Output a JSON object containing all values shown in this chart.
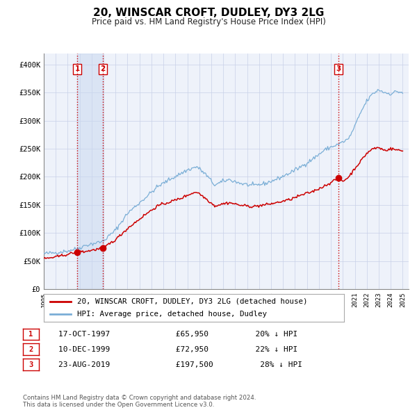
{
  "title": "20, WINSCAR CROFT, DUDLEY, DY3 2LG",
  "subtitle": "Price paid vs. HM Land Registry's House Price Index (HPI)",
  "title_fontsize": 11,
  "subtitle_fontsize": 8.5,
  "ylabel_ticks": [
    "£0",
    "£50K",
    "£100K",
    "£150K",
    "£200K",
    "£250K",
    "£300K",
    "£350K",
    "£400K"
  ],
  "ylabel_values": [
    0,
    50000,
    100000,
    150000,
    200000,
    250000,
    300000,
    350000,
    400000
  ],
  "ylim": [
    0,
    420000
  ],
  "xlim_start": 1995.0,
  "xlim_end": 2025.5,
  "x_ticks": [
    1995,
    1996,
    1997,
    1998,
    1999,
    2000,
    2001,
    2002,
    2003,
    2004,
    2005,
    2006,
    2007,
    2008,
    2009,
    2010,
    2011,
    2012,
    2013,
    2014,
    2015,
    2016,
    2017,
    2018,
    2019,
    2020,
    2021,
    2022,
    2023,
    2024,
    2025
  ],
  "sale_color": "#cc0000",
  "hpi_color": "#7aaed6",
  "bg_color": "#eef2fa",
  "grid_color": "#c8d0e8",
  "sale_points": [
    {
      "date": 1997.79,
      "value": 65950,
      "label": "1"
    },
    {
      "date": 1999.94,
      "value": 72950,
      "label": "2"
    },
    {
      "date": 2019.64,
      "value": 197500,
      "label": "3"
    }
  ],
  "vline_color": "#cc0000",
  "vline_style": ":",
  "shaded_region": [
    1997.79,
    1999.94
  ],
  "legend_label_red": "20, WINSCAR CROFT, DUDLEY, DY3 2LG (detached house)",
  "legend_label_blue": "HPI: Average price, detached house, Dudley",
  "table_rows": [
    {
      "num": "1",
      "date": "17-OCT-1997",
      "price": "£65,950",
      "hpi": "20% ↓ HPI"
    },
    {
      "num": "2",
      "date": "10-DEC-1999",
      "price": "£72,950",
      "hpi": "22% ↓ HPI"
    },
    {
      "num": "3",
      "date": "23-AUG-2019",
      "price": "£197,500",
      "hpi": "28% ↓ HPI"
    }
  ],
  "footnote": "Contains HM Land Registry data © Crown copyright and database right 2024.\nThis data is licensed under the Open Government Licence v3.0."
}
